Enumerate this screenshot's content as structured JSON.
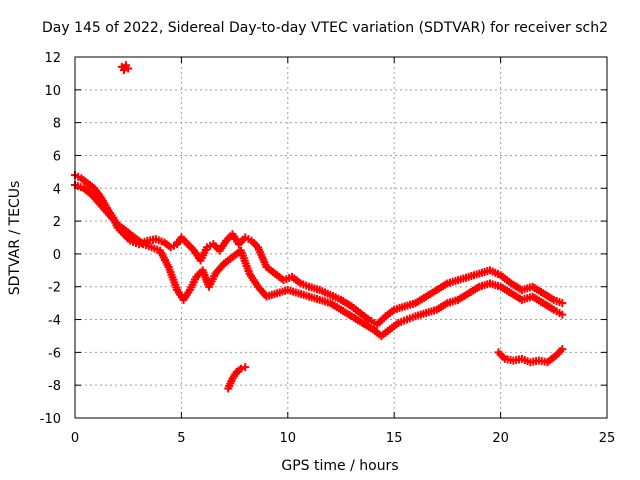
{
  "chart_data": {
    "type": "scatter",
    "title": "Day 145 of 2022, Sidereal Day-to-day VTEC variation (SDTVAR) for receiver sch2",
    "xlabel": "GPS time / hours",
    "ylabel": "SDTVAR / TECUs",
    "xlim": [
      0,
      25
    ],
    "ylim": [
      -10,
      12
    ],
    "xticks": [
      0,
      5,
      10,
      15,
      20,
      25
    ],
    "xtick_labels": [
      "0",
      "5",
      "10",
      "15",
      "20",
      "25"
    ],
    "yticks": [
      12,
      10,
      8,
      6,
      4,
      2,
      0,
      -2,
      -4,
      -6,
      -8,
      -10
    ],
    "ytick_labels": [
      "12",
      "10",
      "8",
      "6",
      "4",
      "2",
      "0",
      "-2",
      "-4",
      "-6",
      "-8",
      "-10"
    ],
    "grid": true,
    "marker": "plus",
    "color": "#ff0000",
    "series": [
      {
        "name": "main-upper-trace",
        "x": [
          0.0,
          0.3,
          0.6,
          0.9,
          1.2,
          1.5,
          1.8,
          2.0,
          2.3,
          2.6,
          3.0,
          3.4,
          3.8,
          4.2,
          4.5,
          4.8,
          5.0,
          5.3,
          5.6,
          5.9,
          6.2,
          6.5,
          6.8,
          7.1,
          7.4,
          7.7,
          8.0,
          8.3,
          8.6,
          9.0,
          9.4,
          9.8,
          10.2,
          10.6,
          11.0,
          11.5,
          12.0,
          12.5,
          13.0,
          13.4,
          13.8,
          14.2,
          14.6,
          15.0,
          15.5,
          16.0,
          16.5,
          17.0,
          17.5,
          18.0,
          18.5,
          19.0,
          19.5,
          20.0,
          20.5,
          21.0,
          21.5,
          22.0,
          22.5,
          22.9
        ],
        "y": [
          4.8,
          4.6,
          4.3,
          4.0,
          3.5,
          2.8,
          2.2,
          1.6,
          1.2,
          0.8,
          0.6,
          0.8,
          0.9,
          0.7,
          0.4,
          0.6,
          1.0,
          0.6,
          0.2,
          -0.4,
          0.4,
          0.6,
          0.2,
          0.8,
          1.2,
          0.6,
          1.0,
          0.8,
          0.4,
          -0.8,
          -1.2,
          -1.6,
          -1.4,
          -1.8,
          -2.0,
          -2.2,
          -2.5,
          -2.8,
          -3.2,
          -3.6,
          -4.0,
          -4.3,
          -3.8,
          -3.4,
          -3.2,
          -3.0,
          -2.6,
          -2.2,
          -1.8,
          -1.6,
          -1.4,
          -1.2,
          -1.0,
          -1.3,
          -1.8,
          -2.2,
          -2.0,
          -2.4,
          -2.8,
          -3.0
        ]
      },
      {
        "name": "main-lower-trace",
        "x": [
          0.0,
          0.4,
          0.8,
          1.2,
          1.6,
          2.0,
          2.4,
          2.8,
          3.2,
          3.6,
          4.0,
          4.4,
          4.8,
          5.1,
          5.4,
          5.7,
          6.0,
          6.3,
          6.6,
          7.0,
          7.4,
          7.8,
          8.2,
          8.6,
          9.0,
          9.5,
          10.0,
          10.5,
          11.0,
          11.5,
          12.0,
          12.5,
          13.0,
          13.5,
          14.0,
          14.4,
          14.8,
          15.2,
          15.6,
          16.0,
          16.5,
          17.0,
          17.5,
          18.0,
          18.5,
          19.0,
          19.5,
          20.0,
          20.5,
          21.0,
          21.5,
          22.0,
          22.5,
          22.9
        ],
        "y": [
          4.2,
          4.0,
          3.6,
          3.0,
          2.4,
          1.8,
          1.4,
          1.0,
          0.6,
          0.4,
          0.2,
          -0.8,
          -2.2,
          -2.8,
          -2.2,
          -1.4,
          -1.0,
          -2.0,
          -1.2,
          -0.6,
          -0.2,
          0.2,
          -1.2,
          -2.0,
          -2.6,
          -2.4,
          -2.2,
          -2.4,
          -2.6,
          -2.8,
          -3.0,
          -3.4,
          -3.8,
          -4.2,
          -4.6,
          -5.0,
          -4.6,
          -4.2,
          -4.0,
          -3.8,
          -3.6,
          -3.4,
          -3.0,
          -2.8,
          -2.4,
          -2.0,
          -1.8,
          -2.0,
          -2.4,
          -2.8,
          -2.6,
          -3.0,
          -3.4,
          -3.7
        ]
      },
      {
        "name": "outlier-early",
        "x": [
          2.2,
          2.3,
          2.4,
          2.5
        ],
        "y": [
          11.4,
          11.2,
          11.5,
          11.3
        ]
      },
      {
        "name": "isolated-segment-7h",
        "x": [
          7.2,
          7.4,
          7.6,
          7.8,
          8.0
        ],
        "y": [
          -8.2,
          -7.6,
          -7.2,
          -7.0,
          -6.9
        ]
      },
      {
        "name": "isolated-segment-20h",
        "x": [
          19.9,
          20.2,
          20.6,
          21.0,
          21.4,
          21.8,
          22.2,
          22.6,
          22.9
        ],
        "y": [
          -6.0,
          -6.4,
          -6.5,
          -6.4,
          -6.6,
          -6.5,
          -6.6,
          -6.2,
          -5.8
        ]
      }
    ]
  }
}
